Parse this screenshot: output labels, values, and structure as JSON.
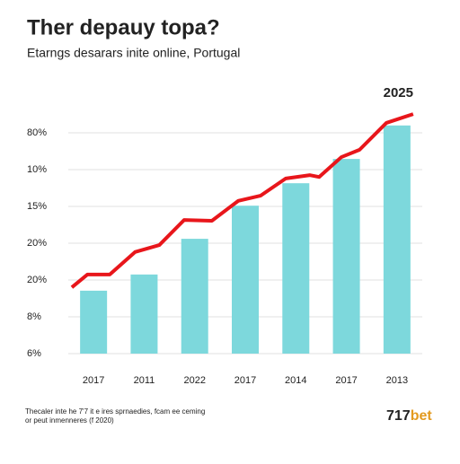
{
  "chart_data": {
    "type": "bar",
    "title": "Ther depauy topa?",
    "subtitle": "Etarngs desarars inite online, Portugal",
    "annotation": "2025",
    "categories": [
      "2017",
      "2011",
      "2022",
      "2017",
      "2014",
      "2017",
      "2013"
    ],
    "values": [
      1.71,
      2.15,
      3.12,
      4.02,
      4.63,
      5.29,
      6.2
    ],
    "color": "#7dd8dc",
    "line": {
      "type": "line",
      "color": "#e8161b",
      "x": [
        -0.43,
        -0.12,
        0.32,
        0.82,
        1.3,
        1.79,
        2.34,
        2.86,
        3.3,
        3.8,
        4.28,
        4.46,
        4.9,
        5.26,
        5.79,
        6.32
      ],
      "values": [
        1.8,
        2.15,
        2.15,
        2.76,
        2.95,
        3.63,
        3.61,
        4.15,
        4.29,
        4.76,
        4.85,
        4.8,
        5.34,
        5.54,
        6.27,
        6.51
      ]
    },
    "ylim": [
      0,
      6.6
    ],
    "yticks": [
      {
        "value": 0,
        "label": "6%"
      },
      {
        "value": 1,
        "label": "8%"
      },
      {
        "value": 2,
        "label": "20%"
      },
      {
        "value": 3,
        "label": "20%"
      },
      {
        "value": 4,
        "label": "15%"
      },
      {
        "value": 5,
        "label": "10%"
      },
      {
        "value": 6,
        "label": "80%"
      }
    ],
    "grid": true,
    "footnote": [
      "Thecaler inte he 7'7 it e ires sprnaedies, fcam ee ceming",
      "or peut inmenneres (f 2020)"
    ],
    "brand": [
      "717",
      "bet"
    ]
  }
}
